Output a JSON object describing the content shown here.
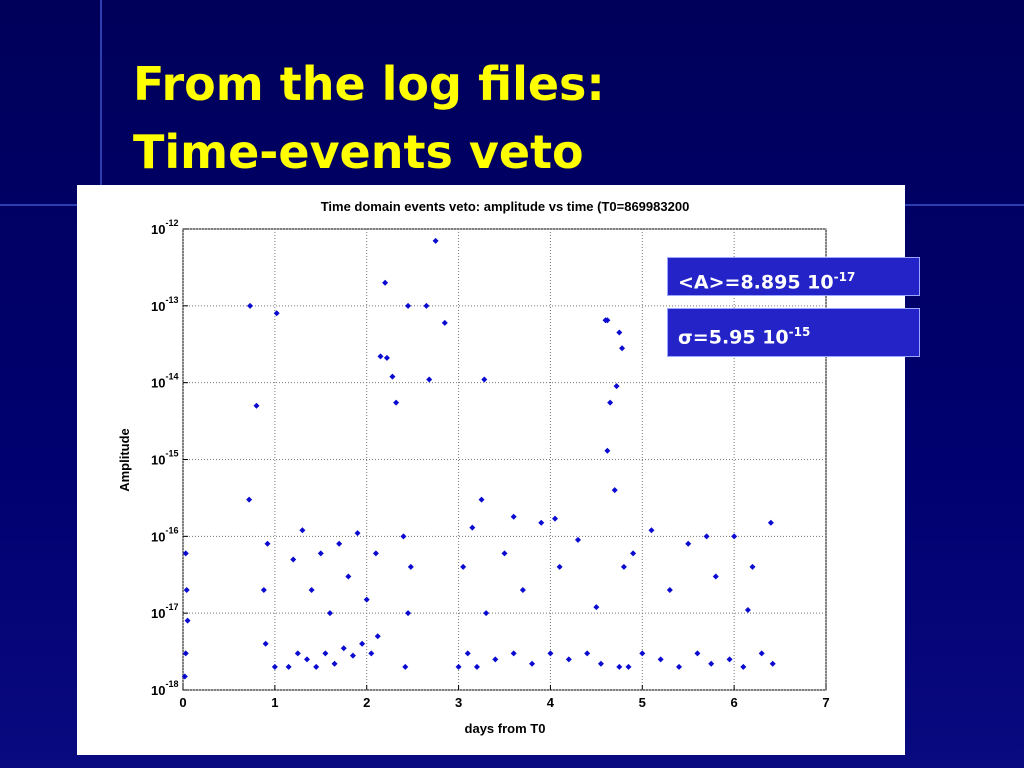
{
  "slide": {
    "title_lines": [
      "From the log files:",
      "Time-events veto"
    ],
    "stats": [
      {
        "text": "<A>=8.895 10",
        "sup": "-17"
      },
      {
        "text": "σ=5.95 10",
        "sup": "-15"
      }
    ]
  },
  "chart_data": {
    "type": "scatter",
    "title": "Time domain events veto: amplitude vs time (T0=869983200",
    "x_label": "days from T0",
    "y_label": "Amplitude",
    "y_log": true,
    "grid": true,
    "color": "#0a0ad0",
    "xlim": [
      0,
      7
    ],
    "xticks": [
      0,
      1,
      2,
      3,
      4,
      5,
      6,
      7
    ],
    "ylim": [
      1e-18,
      1e-12
    ],
    "yticks": [
      {
        "value": 1e-18,
        "label": "10",
        "sup": "-18"
      },
      {
        "value": 1e-17,
        "label": "10",
        "sup": "-17"
      },
      {
        "value": 1e-16,
        "label": "10",
        "sup": "-16"
      },
      {
        "value": 1e-15,
        "label": "10",
        "sup": "-15"
      },
      {
        "value": 1e-14,
        "label": "10",
        "sup": "-14"
      },
      {
        "value": 1e-13,
        "label": "10",
        "sup": "-13"
      },
      {
        "value": 1e-12,
        "label": "10",
        "sup": "-12"
      }
    ],
    "x": [
      0.73,
      1.02,
      0.8,
      0.72,
      2.2,
      2.45,
      2.65,
      2.75,
      2.85,
      2.15,
      2.22,
      2.28,
      2.32,
      2.68,
      3.28,
      3.25,
      4.6,
      4.62,
      4.75,
      4.78,
      4.72,
      4.65,
      4.62,
      4.7,
      0.02,
      0.03,
      0.05,
      0.04,
      0.03,
      0.88,
      0.9,
      0.92,
      1.0,
      1.15,
      1.25,
      1.35,
      1.45,
      1.55,
      1.65,
      1.75,
      1.85,
      1.95,
      2.05,
      2.12,
      1.2,
      1.3,
      1.4,
      1.5,
      1.6,
      1.7,
      1.8,
      1.9,
      2.0,
      2.1,
      2.42,
      2.45,
      2.48,
      2.4,
      3.0,
      3.1,
      3.2,
      3.4,
      3.6,
      3.8,
      4.0,
      4.2,
      4.4,
      4.55,
      3.05,
      3.15,
      3.3,
      3.5,
      3.7,
      3.9,
      4.1,
      4.3,
      4.5,
      3.6,
      4.05,
      4.75,
      4.8,
      4.85,
      5.0,
      5.2,
      5.4,
      5.6,
      5.75,
      4.9,
      5.1,
      5.3,
      5.5,
      5.7,
      5.8,
      5.95,
      6.1,
      6.3,
      6.42,
      6.0,
      6.2,
      6.4,
      6.15
    ],
    "y": [
      1e-13,
      8e-14,
      5e-15,
      3e-16,
      2e-13,
      1e-13,
      1e-13,
      7e-13,
      6e-14,
      2.2e-14,
      2.1e-14,
      1.2e-14,
      5.5e-15,
      1.1e-14,
      1.1e-14,
      3e-16,
      6.5e-14,
      6.5e-14,
      4.5e-14,
      2.8e-14,
      9e-15,
      5.5e-15,
      1.3e-15,
      4e-16,
      1.5e-18,
      3e-18,
      8e-18,
      2e-17,
      6e-17,
      2e-17,
      4e-18,
      8e-17,
      2e-18,
      2e-18,
      3e-18,
      2.5e-18,
      2e-18,
      3e-18,
      2.2e-18,
      3.5e-18,
      2.8e-18,
      4e-18,
      3e-18,
      5e-18,
      5e-17,
      1.2e-16,
      2e-17,
      6e-17,
      1e-17,
      8e-17,
      3e-17,
      1.1e-16,
      1.5e-17,
      6e-17,
      2e-18,
      1e-17,
      4e-17,
      1e-16,
      2e-18,
      3e-18,
      2e-18,
      2.5e-18,
      3e-18,
      2.2e-18,
      3e-18,
      2.5e-18,
      3e-18,
      2.2e-18,
      4e-17,
      1.3e-16,
      1e-17,
      6e-17,
      2e-17,
      1.5e-16,
      4e-17,
      9e-17,
      1.2e-17,
      1.8e-16,
      1.7e-16,
      2e-18,
      4e-17,
      2e-18,
      3e-18,
      2.5e-18,
      2e-18,
      3e-18,
      2.2e-18,
      6e-17,
      1.2e-16,
      2e-17,
      8e-17,
      1e-16,
      3e-17,
      2.5e-18,
      2e-18,
      3e-18,
      2.2e-18,
      1e-16,
      4e-17,
      1.5e-16,
      1.1e-17
    ]
  }
}
